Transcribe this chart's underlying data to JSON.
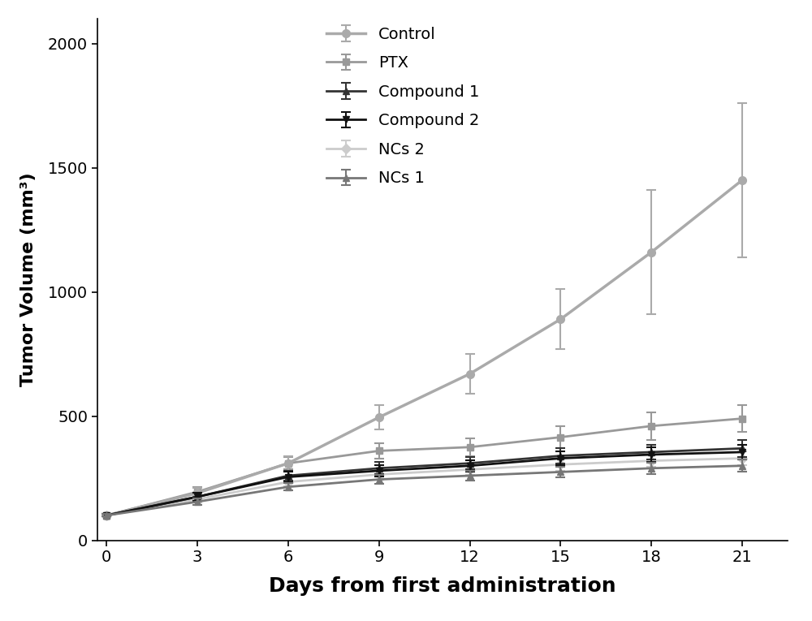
{
  "x": [
    0,
    3,
    6,
    9,
    12,
    15,
    18,
    21
  ],
  "series": {
    "Control": {
      "y": [
        100,
        190,
        310,
        495,
        670,
        890,
        1160,
        1450
      ],
      "yerr": [
        5,
        20,
        30,
        50,
        80,
        120,
        250,
        310
      ],
      "color": "#aaaaaa",
      "marker": "o",
      "linewidth": 2.5,
      "markersize": 7,
      "zorder": 3
    },
    "PTX": {
      "y": [
        100,
        195,
        310,
        360,
        375,
        415,
        460,
        490
      ],
      "yerr": [
        5,
        20,
        25,
        30,
        35,
        45,
        55,
        55
      ],
      "color": "#999999",
      "marker": "s",
      "linewidth": 2.0,
      "markersize": 6,
      "zorder": 2
    },
    "Compound 1": {
      "y": [
        100,
        175,
        260,
        290,
        310,
        340,
        355,
        370
      ],
      "yerr": [
        5,
        15,
        20,
        25,
        25,
        30,
        30,
        35
      ],
      "color": "#333333",
      "marker": "^",
      "linewidth": 2.0,
      "markersize": 6,
      "zorder": 4
    },
    "Compound 2": {
      "y": [
        100,
        175,
        255,
        280,
        300,
        330,
        345,
        355
      ],
      "yerr": [
        5,
        15,
        20,
        22,
        23,
        28,
        28,
        30
      ],
      "color": "#111111",
      "marker": "v",
      "linewidth": 2.0,
      "markersize": 6,
      "zorder": 5
    },
    "NCs 2": {
      "y": [
        100,
        165,
        235,
        265,
        285,
        305,
        320,
        330
      ],
      "yerr": [
        5,
        12,
        18,
        20,
        22,
        25,
        25,
        28
      ],
      "color": "#cccccc",
      "marker": "D",
      "linewidth": 2.0,
      "markersize": 6,
      "zorder": 1
    },
    "NCs 1": {
      "y": [
        100,
        155,
        215,
        245,
        260,
        275,
        290,
        300
      ],
      "yerr": [
        5,
        12,
        15,
        18,
        20,
        22,
        22,
        25
      ],
      "color": "#777777",
      "marker": "^",
      "linewidth": 2.0,
      "markersize": 6,
      "zorder": 6
    }
  },
  "xlabel": "Days from first administration",
  "ylabel": "Tumor Volume (mm³)",
  "xlim": [
    -0.3,
    22.5
  ],
  "ylim": [
    0,
    2100
  ],
  "xticks": [
    0,
    3,
    6,
    9,
    12,
    15,
    18,
    21
  ],
  "yticks": [
    0,
    500,
    1000,
    1500,
    2000
  ],
  "legend_order": [
    "Control",
    "PTX",
    "Compound 1",
    "Compound 2",
    "NCs 2",
    "NCs 1"
  ],
  "background_color": "#ffffff",
  "xlabel_fontsize": 18,
  "ylabel_fontsize": 16,
  "tick_fontsize": 14,
  "legend_fontsize": 14
}
